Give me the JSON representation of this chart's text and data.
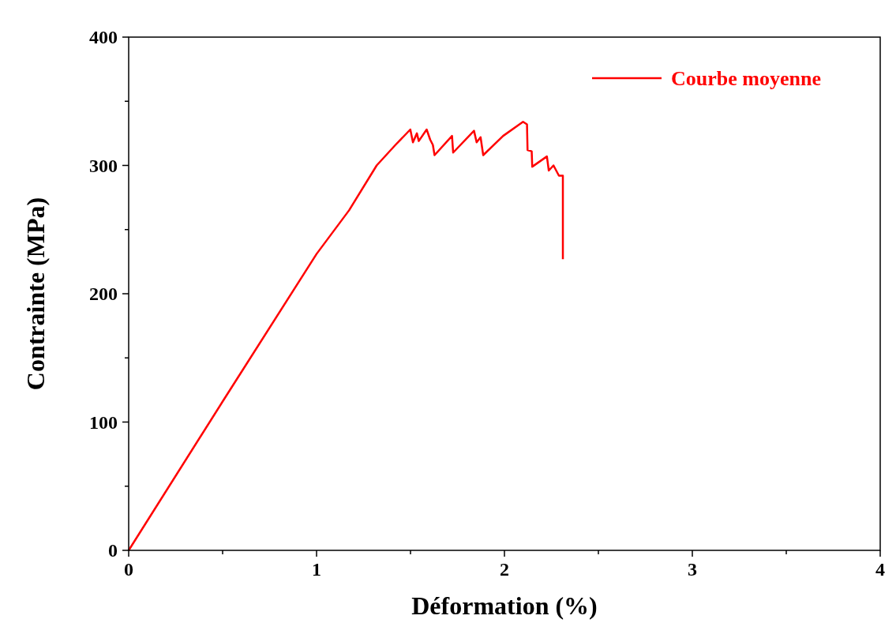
{
  "chart_data": {
    "type": "line",
    "xlabel": "Déformation (%)",
    "ylabel": "Contrainte (MPa)",
    "xlim": [
      0,
      4
    ],
    "ylim": [
      0,
      400
    ],
    "xticks": [
      0,
      {
        "value": 0.5,
        "label": null
      },
      1,
      {
        "value": 1.5,
        "label": null
      },
      2,
      {
        "value": 2.5,
        "label": null
      },
      3,
      {
        "value": 3.5,
        "label": null
      },
      4
    ],
    "yticks": [
      0,
      {
        "value": 50,
        "label": null
      },
      100,
      {
        "value": 150,
        "label": null
      },
      200,
      {
        "value": 250,
        "label": null
      },
      300,
      {
        "value": 350,
        "label": null
      },
      400
    ],
    "grid": false,
    "legend": "top right",
    "marker": "none",
    "line_style": "solid",
    "series": [
      {
        "name": "Courbe moyenne",
        "color": "#ff0000",
        "x": [
          0,
          0.5,
          1,
          1.173,
          1.32,
          1.42,
          1.499,
          1.513,
          1.534,
          1.544,
          1.586,
          1.605,
          1.619,
          1.628,
          1.721,
          1.727,
          1.838,
          1.852,
          1.873,
          1.887,
          1.993,
          2.099,
          2.12,
          2.123,
          2.145,
          2.148,
          2.226,
          2.236,
          2.261,
          2.29,
          2.311,
          2.311
        ],
        "values": [
          0,
          116,
          231,
          265,
          300,
          316,
          328,
          318,
          325,
          319,
          328,
          320,
          316,
          308,
          323,
          310,
          327,
          318,
          322,
          308,
          323,
          334,
          332,
          312,
          311,
          299,
          307,
          296,
          300,
          292,
          292,
          227
        ]
      }
    ]
  }
}
